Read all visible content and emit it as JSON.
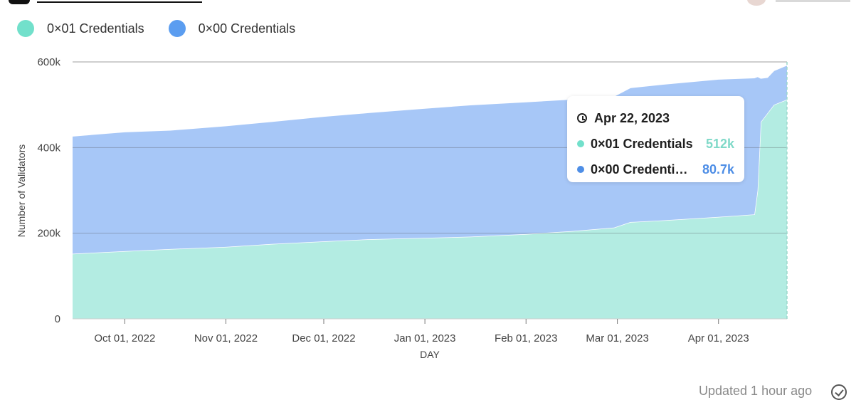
{
  "legend": {
    "items": [
      {
        "label": "0×01 Credentials",
        "color": "#72e0cb"
      },
      {
        "label": "0×00 Credentials",
        "color": "#5b9df0"
      }
    ]
  },
  "tooltip": {
    "date": "Apr 22, 2023",
    "rows": [
      {
        "name": "0×01 Credentials",
        "value": "512k",
        "color": "#72e0cb",
        "value_color": "#7fd9c8"
      },
      {
        "name": "0×00 Credenti…",
        "value": "80.7k",
        "color": "#4e8ee6",
        "value_color": "#4e8ee6"
      }
    ]
  },
  "footer": {
    "updated": "Updated 1 hour ago"
  },
  "chart_data": {
    "type": "area",
    "stacked": true,
    "xlabel": "DAY",
    "ylabel": "Number of Validators",
    "ylim": [
      0,
      600000
    ],
    "x_range": [
      "2022-09-15",
      "2023-04-22"
    ],
    "y_ticks": [
      {
        "value": 0,
        "label": "0"
      },
      {
        "value": 200000,
        "label": "200k"
      },
      {
        "value": 400000,
        "label": "400k"
      },
      {
        "value": 600000,
        "label": "600k"
      }
    ],
    "x_ticks": [
      {
        "date": "2022-10-01",
        "label": "Oct 01, 2022"
      },
      {
        "date": "2022-11-01",
        "label": "Nov 01, 2022"
      },
      {
        "date": "2022-12-01",
        "label": "Dec 01, 2022"
      },
      {
        "date": "2023-01-01",
        "label": "Jan 01, 2023"
      },
      {
        "date": "2023-02-01",
        "label": "Feb 01, 2023"
      },
      {
        "date": "2023-03-01",
        "label": "Mar 01, 2023"
      },
      {
        "date": "2023-04-01",
        "label": "Apr 01, 2023"
      }
    ],
    "series": [
      {
        "name": "0×01 Credentials",
        "color": "#b3ece2",
        "points": [
          [
            "2022-09-15",
            152000
          ],
          [
            "2022-10-01",
            158000
          ],
          [
            "2022-10-15",
            163000
          ],
          [
            "2022-11-01",
            168000
          ],
          [
            "2022-11-15",
            175000
          ],
          [
            "2022-12-01",
            181000
          ],
          [
            "2022-12-15",
            186000
          ],
          [
            "2023-01-01",
            189000
          ],
          [
            "2023-01-15",
            192000
          ],
          [
            "2023-02-01",
            198000
          ],
          [
            "2023-02-15",
            205000
          ],
          [
            "2023-02-28",
            213000
          ],
          [
            "2023-03-05",
            226000
          ],
          [
            "2023-03-15",
            230000
          ],
          [
            "2023-04-01",
            238000
          ],
          [
            "2023-04-12",
            244000
          ],
          [
            "2023-04-13",
            300000
          ],
          [
            "2023-04-14",
            460000
          ],
          [
            "2023-04-16",
            480000
          ],
          [
            "2023-04-18",
            500000
          ],
          [
            "2023-04-22",
            512000
          ]
        ]
      },
      {
        "name": "0×00 Credentials",
        "color": "#a7c7f7",
        "points": [
          [
            "2022-09-15",
            275000
          ],
          [
            "2022-10-01",
            279000
          ],
          [
            "2022-10-15",
            278000
          ],
          [
            "2022-11-01",
            283000
          ],
          [
            "2022-11-15",
            286000
          ],
          [
            "2022-12-01",
            292000
          ],
          [
            "2022-12-15",
            296000
          ],
          [
            "2023-01-01",
            303000
          ],
          [
            "2023-01-15",
            308000
          ],
          [
            "2023-02-01",
            309000
          ],
          [
            "2023-02-15",
            308000
          ],
          [
            "2023-02-28",
            307000
          ],
          [
            "2023-03-05",
            314000
          ],
          [
            "2023-03-15",
            318000
          ],
          [
            "2023-04-01",
            322000
          ],
          [
            "2023-04-12",
            319000
          ],
          [
            "2023-04-13",
            266000
          ],
          [
            "2023-04-14",
            102000
          ],
          [
            "2023-04-16",
            84000
          ],
          [
            "2023-04-18",
            80000
          ],
          [
            "2023-04-22",
            80700
          ]
        ]
      }
    ]
  }
}
